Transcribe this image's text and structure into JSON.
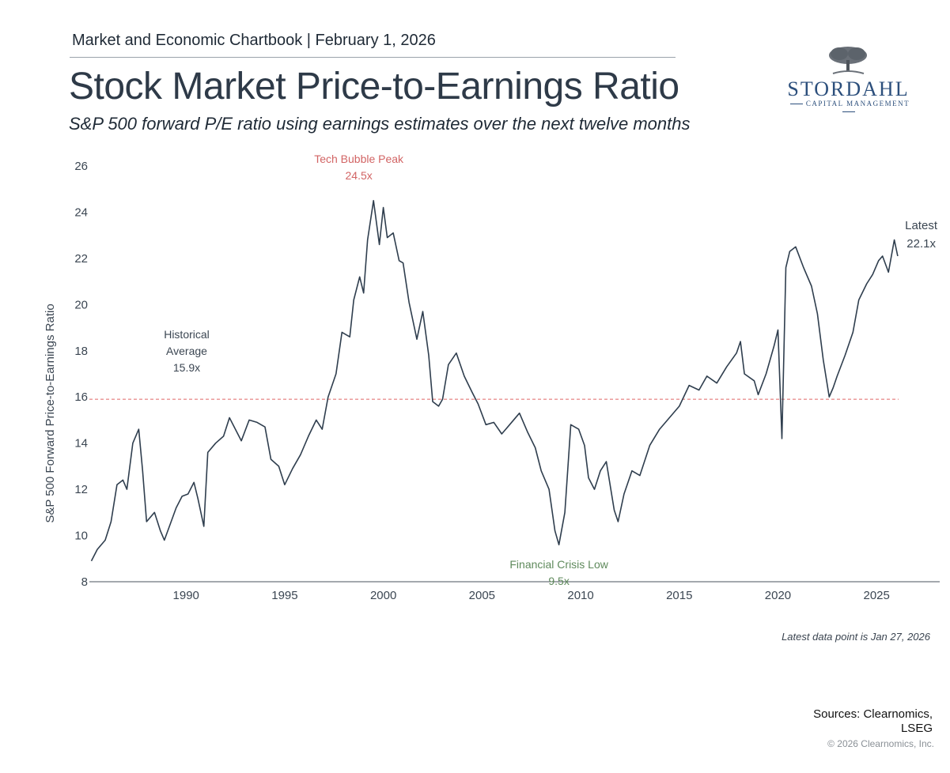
{
  "header": {
    "chartbook": "Market and Economic Chartbook | February 1, 2026",
    "title": "Stock Market Price-to-Earnings Ratio",
    "subtitle": "S&P 500 forward P/E ratio using earnings estimates over the next twelve months"
  },
  "logo": {
    "name": "STORDAHL",
    "tagline": "CAPITAL MANAGEMENT"
  },
  "chart_data": {
    "type": "line",
    "title": "Stock Market Price-to-Earnings Ratio",
    "ylabel": "S&P 500 Forward Price-to-Earnings Ratio",
    "xlabel": "",
    "xlim": [
      1985.1,
      2028.2
    ],
    "ylim": [
      8,
      26
    ],
    "yticks": [
      8,
      10,
      12,
      14,
      16,
      18,
      20,
      22,
      24,
      26
    ],
    "xticks": [
      1990,
      1995,
      2000,
      2005,
      2010,
      2015,
      2020,
      2025
    ],
    "line_color": "#2f3e4e",
    "average_color": "#e06666",
    "historical_average": 15.9,
    "series": [
      {
        "name": "S&P 500 Forward P/E",
        "x": [
          1985.2,
          1985.5,
          1985.9,
          1986.2,
          1986.5,
          1986.8,
          1987.0,
          1987.3,
          1987.6,
          1987.8,
          1988.0,
          1988.4,
          1988.7,
          1988.9,
          1989.2,
          1989.5,
          1989.8,
          1990.1,
          1990.4,
          1990.6,
          1990.9,
          1991.1,
          1991.5,
          1991.9,
          1992.2,
          1992.5,
          1992.8,
          1993.2,
          1993.6,
          1994.0,
          1994.3,
          1994.7,
          1995.0,
          1995.4,
          1995.8,
          1996.2,
          1996.6,
          1996.9,
          1997.2,
          1997.6,
          1997.9,
          1998.3,
          1998.5,
          1998.8,
          1999.0,
          1999.2,
          1999.5,
          1999.8,
          2000.0,
          2000.2,
          2000.5,
          2000.8,
          2001.0,
          2001.3,
          2001.7,
          2002.0,
          2002.3,
          2002.5,
          2002.8,
          2003.0,
          2003.3,
          2003.7,
          2004.1,
          2004.5,
          2004.8,
          2005.2,
          2005.6,
          2006.0,
          2006.4,
          2006.9,
          2007.3,
          2007.7,
          2008.0,
          2008.4,
          2008.7,
          2008.9,
          2009.2,
          2009.5,
          2009.9,
          2010.2,
          2010.4,
          2010.7,
          2011.0,
          2011.3,
          2011.7,
          2011.9,
          2012.2,
          2012.6,
          2013.0,
          2013.5,
          2014.0,
          2014.5,
          2015.0,
          2015.5,
          2016.0,
          2016.4,
          2016.9,
          2017.4,
          2017.9,
          2018.1,
          2018.3,
          2018.8,
          2019.0,
          2019.4,
          2019.8,
          2020.0,
          2020.2,
          2020.4,
          2020.6,
          2020.9,
          2021.3,
          2021.7,
          2022.0,
          2022.3,
          2022.6,
          2022.8,
          2023.0,
          2023.4,
          2023.8,
          2024.1,
          2024.5,
          2024.8,
          2025.1,
          2025.3,
          2025.6,
          2025.9,
          2026.07
        ],
        "values": [
          8.9,
          9.4,
          9.8,
          10.6,
          12.2,
          12.4,
          12.0,
          14.0,
          14.6,
          12.8,
          10.6,
          11.0,
          10.2,
          9.8,
          10.5,
          11.2,
          11.7,
          11.8,
          12.3,
          11.6,
          10.4,
          13.6,
          14.0,
          14.3,
          15.1,
          14.6,
          14.1,
          15.0,
          14.9,
          14.7,
          13.3,
          13.0,
          12.2,
          12.9,
          13.5,
          14.3,
          15.0,
          14.6,
          16.0,
          17.0,
          18.8,
          18.6,
          20.2,
          21.2,
          20.5,
          22.8,
          24.5,
          22.6,
          24.2,
          22.9,
          23.1,
          21.9,
          21.8,
          20.1,
          18.5,
          19.7,
          17.8,
          15.8,
          15.6,
          15.9,
          17.4,
          17.9,
          16.9,
          16.2,
          15.7,
          14.8,
          14.9,
          14.4,
          14.8,
          15.3,
          14.5,
          13.8,
          12.8,
          12.0,
          10.2,
          9.6,
          11.0,
          14.8,
          14.6,
          13.9,
          12.5,
          12.0,
          12.8,
          13.2,
          11.1,
          10.6,
          11.8,
          12.8,
          12.6,
          13.9,
          14.6,
          15.1,
          15.6,
          16.5,
          16.3,
          16.9,
          16.6,
          17.3,
          17.9,
          18.4,
          17.0,
          16.7,
          16.1,
          17.0,
          18.2,
          18.9,
          14.2,
          21.6,
          22.3,
          22.5,
          21.6,
          20.8,
          19.6,
          17.6,
          16.0,
          16.4,
          16.9,
          17.8,
          18.8,
          20.2,
          20.9,
          21.3,
          21.9,
          22.1,
          21.4,
          22.8,
          22.1
        ]
      }
    ],
    "annotations": [
      {
        "label": "Tech Bubble Peak",
        "value_label": "24.5x",
        "x": 1999.8,
        "y": 24.5,
        "color": "#d26464"
      },
      {
        "label": "Financial Crisis Low",
        "value_label": "9.5x",
        "x": 2008.9,
        "y": 9.5,
        "color": "#5f8a5c"
      },
      {
        "label_lines": [
          "Historical",
          "Average"
        ],
        "value_label": "15.9x",
        "x": 1990.0,
        "y": 15.9,
        "color": "#3b4652"
      },
      {
        "label": "Latest",
        "value_label": "22.1x",
        "x": 2026.07,
        "y": 22.1,
        "color": "#3b4652"
      }
    ]
  },
  "footer": {
    "latest_note": "Latest data point is Jan 27, 2026",
    "sources_line1": "Sources: Clearnomics,",
    "sources_line2": "LSEG",
    "copyright": "© 2026 Clearnomics, Inc."
  }
}
